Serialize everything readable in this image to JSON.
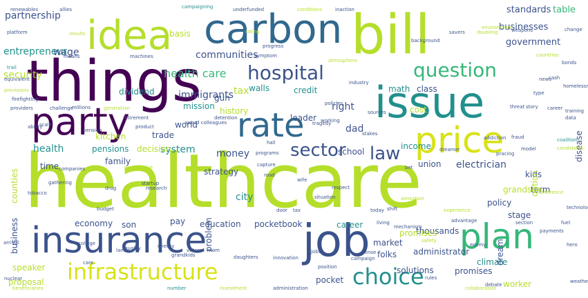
{
  "palette": {
    "purple": "#440154",
    "indigo": "#3b528b",
    "blue": "#31688e",
    "teal": "#21908d",
    "green": "#35b779",
    "lightgreen": "#5ec962",
    "lime": "#b5de2b",
    "yellow": "#d8e219",
    "dark": "#472c7a"
  },
  "words": [
    {
      "text": "healthcare",
      "color": "lime"
    },
    {
      "text": "things",
      "color": "purple"
    },
    {
      "text": "bill",
      "color": "lime"
    },
    {
      "text": "idea",
      "color": "lime"
    },
    {
      "text": "carbon",
      "color": "blue"
    },
    {
      "text": "issue",
      "color": "teal"
    },
    {
      "text": "party",
      "color": "purple"
    },
    {
      "text": "rate",
      "color": "blue"
    },
    {
      "text": "price",
      "color": "yellow"
    },
    {
      "text": "insurance",
      "color": "indigo"
    },
    {
      "text": "job",
      "color": "indigo"
    },
    {
      "text": "plan",
      "color": "green"
    },
    {
      "text": "infrastructure",
      "color": "yellow"
    },
    {
      "text": "choice",
      "color": "teal"
    },
    {
      "text": "hospital",
      "color": "indigo"
    },
    {
      "text": "question",
      "color": "green"
    },
    {
      "text": "sector",
      "color": "indigo"
    },
    {
      "text": "law",
      "color": "indigo"
    },
    {
      "text": "government",
      "color": "indigo"
    },
    {
      "text": "standards",
      "color": "indigo"
    },
    {
      "text": "businesses",
      "color": "indigo"
    },
    {
      "text": "table",
      "color": "green"
    },
    {
      "text": "partnership",
      "color": "indigo"
    },
    {
      "text": "entrepreneur",
      "color": "teal"
    },
    {
      "text": "wage",
      "color": "indigo"
    },
    {
      "text": "communities",
      "color": "indigo"
    },
    {
      "text": "health care",
      "color": "green"
    },
    {
      "text": "security",
      "color": "lime"
    },
    {
      "text": "dividend",
      "color": "teal"
    },
    {
      "text": "credit",
      "color": "teal"
    },
    {
      "text": "gun",
      "color": "indigo"
    },
    {
      "text": "walls",
      "color": "teal"
    },
    {
      "text": "math",
      "color": "teal"
    },
    {
      "text": "class",
      "color": "indigo"
    },
    {
      "text": "tax",
      "color": "lime"
    },
    {
      "text": "immigrants",
      "color": "indigo"
    },
    {
      "text": "mission",
      "color": "teal"
    },
    {
      "text": "right",
      "color": "indigo"
    },
    {
      "text": "leader",
      "color": "indigo"
    },
    {
      "text": "history",
      "color": "lime"
    },
    {
      "text": "world",
      "color": "indigo"
    },
    {
      "text": "trade",
      "color": "indigo"
    },
    {
      "text": "system",
      "color": "teal"
    },
    {
      "text": "dad",
      "color": "indigo"
    },
    {
      "text": "cost",
      "color": "lime"
    },
    {
      "text": "income",
      "color": "teal"
    },
    {
      "text": "kitchen",
      "color": "lime"
    },
    {
      "text": "pensions",
      "color": "teal"
    },
    {
      "text": "decision",
      "color": "lime"
    },
    {
      "text": "health",
      "color": "teal"
    },
    {
      "text": "money",
      "color": "indigo"
    },
    {
      "text": "strategy",
      "color": "indigo"
    },
    {
      "text": "school",
      "color": "indigo"
    },
    {
      "text": "family",
      "color": "indigo"
    },
    {
      "text": "time",
      "color": "indigo"
    },
    {
      "text": "union",
      "color": "indigo"
    },
    {
      "text": "electrician",
      "color": "indigo"
    },
    {
      "text": "kids",
      "color": "indigo"
    },
    {
      "text": "term",
      "color": "indigo"
    },
    {
      "text": "grandson",
      "color": "lime"
    },
    {
      "text": "policy",
      "color": "indigo"
    },
    {
      "text": "stage",
      "color": "indigo"
    },
    {
      "text": "city",
      "color": "teal"
    },
    {
      "text": "economy",
      "color": "indigo"
    },
    {
      "text": "pay",
      "color": "indigo"
    },
    {
      "text": "son",
      "color": "indigo"
    },
    {
      "text": "education",
      "color": "indigo"
    },
    {
      "text": "pocketbook",
      "color": "indigo"
    },
    {
      "text": "career",
      "color": "teal"
    },
    {
      "text": "thousands",
      "color": "indigo"
    },
    {
      "text": "promises",
      "color": "lime"
    },
    {
      "text": "market",
      "color": "indigo"
    },
    {
      "text": "folks",
      "color": "indigo"
    },
    {
      "text": "administrator",
      "color": "indigo"
    },
    {
      "text": "solutions",
      "color": "indigo"
    },
    {
      "text": "promises",
      "color": "indigo"
    },
    {
      "text": "climate",
      "color": "teal"
    },
    {
      "text": "worker",
      "color": "lime"
    },
    {
      "text": "speaker",
      "color": "lime"
    },
    {
      "text": "proposal",
      "color": "lime"
    },
    {
      "text": "pocket",
      "color": "indigo"
    },
    {
      "text": "basis",
      "color": "lime"
    },
    {
      "text": "counties",
      "color": "lime"
    },
    {
      "text": "business",
      "color": "indigo"
    },
    {
      "text": "problem",
      "color": "indigo"
    },
    {
      "text": "option",
      "color": "lime"
    },
    {
      "text": "disease",
      "color": "indigo"
    },
    {
      "text": "dream",
      "color": "indigo"
    },
    {
      "text": "allies",
      "color": "indigo"
    },
    {
      "text": "campaigning",
      "color": "teal"
    },
    {
      "text": "underfunded",
      "color": "indigo"
    },
    {
      "text": "conditions",
      "color": "lime"
    },
    {
      "text": "inaction",
      "color": "indigo"
    },
    {
      "text": "renewables",
      "color": "indigo"
    },
    {
      "text": "platform",
      "color": "indigo"
    },
    {
      "text": "results",
      "color": "lime"
    },
    {
      "text": "rating",
      "color": "lime"
    },
    {
      "text": "means",
      "color": "indigo"
    },
    {
      "text": "machines",
      "color": "indigo"
    },
    {
      "text": "symptom",
      "color": "indigo"
    },
    {
      "text": "progress",
      "color": "indigo"
    },
    {
      "text": "trail",
      "color": "teal"
    },
    {
      "text": "equivalent",
      "color": "indigo"
    },
    {
      "text": "provisions",
      "color": "lime"
    },
    {
      "text": "firefighting",
      "color": "indigo"
    },
    {
      "text": "providers",
      "color": "indigo"
    },
    {
      "text": "challenge",
      "color": "indigo"
    },
    {
      "text": "millions",
      "color": "indigo"
    },
    {
      "text": "generation",
      "color": "lime"
    },
    {
      "text": "industry",
      "color": "indigo"
    },
    {
      "text": "atmosphere",
      "color": "lime"
    },
    {
      "text": "background",
      "color": "indigo"
    },
    {
      "text": "savers",
      "color": "indigo"
    },
    {
      "text": "doubling",
      "color": "lime"
    },
    {
      "text": "environment",
      "color": "lime"
    },
    {
      "text": "weapons",
      "color": "indigo"
    },
    {
      "text": "countries",
      "color": "lime"
    },
    {
      "text": "change",
      "color": "indigo"
    },
    {
      "text": "training",
      "color": "indigo"
    },
    {
      "text": "data",
      "color": "indigo"
    },
    {
      "text": "coalition",
      "color": "teal"
    },
    {
      "text": "candidates",
      "color": "lime"
    },
    {
      "text": "companies",
      "color": "indigo"
    },
    {
      "text": "perspective",
      "color": "lime"
    },
    {
      "text": "startup",
      "color": "indigo"
    },
    {
      "text": "programs",
      "color": "indigo"
    },
    {
      "text": "capture",
      "color": "indigo"
    },
    {
      "text": "road",
      "color": "indigo"
    },
    {
      "text": "bet",
      "color": "indigo"
    },
    {
      "text": "pracing",
      "color": "indigo"
    },
    {
      "text": "difference",
      "color": "lime"
    },
    {
      "text": "budget",
      "color": "indigo"
    },
    {
      "text": "research",
      "color": "indigo"
    },
    {
      "text": "respect",
      "color": "indigo"
    },
    {
      "text": "situation",
      "color": "indigo"
    },
    {
      "text": "experience",
      "color": "lime"
    },
    {
      "text": "advantage",
      "color": "indigo"
    },
    {
      "text": "living",
      "color": "indigo"
    },
    {
      "text": "mechanism",
      "color": "indigo"
    },
    {
      "text": "section",
      "color": "indigo"
    },
    {
      "text": "payments",
      "color": "indigo"
    },
    {
      "text": "safety",
      "color": "lime"
    },
    {
      "text": "arrival",
      "color": "indigo"
    },
    {
      "text": "college",
      "color": "indigo"
    },
    {
      "text": "quality",
      "color": "indigo"
    },
    {
      "text": "energy",
      "color": "indigo"
    },
    {
      "text": "grandkids",
      "color": "indigo"
    },
    {
      "text": "daughters",
      "color": "indigo"
    },
    {
      "text": "innovation",
      "color": "indigo"
    },
    {
      "text": "position",
      "color": "indigo"
    },
    {
      "text": "campaign",
      "color": "indigo"
    },
    {
      "text": "beneficiaries",
      "color": "lime"
    },
    {
      "text": "number",
      "color": "teal"
    },
    {
      "text": "investment",
      "color": "lime"
    },
    {
      "text": "administration",
      "color": "indigo"
    },
    {
      "text": "collaboration",
      "color": "lime"
    },
    {
      "text": "rules",
      "color": "indigo"
    },
    {
      "text": "debate",
      "color": "indigo"
    },
    {
      "text": "nuclear",
      "color": "indigo"
    },
    {
      "text": "sensation",
      "color": "lime"
    },
    {
      "text": "dreamer",
      "color": "indigo"
    },
    {
      "text": "stakes",
      "color": "indigo"
    },
    {
      "text": "product",
      "color": "indigo"
    },
    {
      "text": "detention",
      "color": "indigo"
    },
    {
      "text": "award colleagues",
      "color": "indigo"
    },
    {
      "text": "tragedy",
      "color": "indigo"
    },
    {
      "text": "working",
      "color": "indigo"
    },
    {
      "text": "policies",
      "color": "indigo"
    },
    {
      "text": "sources",
      "color": "indigo"
    },
    {
      "text": "threat",
      "color": "indigo"
    },
    {
      "text": "story",
      "color": "indigo"
    },
    {
      "text": "career",
      "color": "indigo"
    },
    {
      "text": "news",
      "color": "indigo"
    },
    {
      "text": "bonds",
      "color": "indigo"
    },
    {
      "text": "cash",
      "color": "indigo"
    },
    {
      "text": "type",
      "color": "indigo"
    },
    {
      "text": "homelessness",
      "color": "indigo"
    },
    {
      "text": "technology",
      "color": "indigo"
    },
    {
      "text": "fuel",
      "color": "indigo"
    },
    {
      "text": "tobacco",
      "color": "indigo"
    },
    {
      "text": "gathering",
      "color": "indigo"
    },
    {
      "text": "pension",
      "color": "indigo"
    },
    {
      "text": "retirement",
      "color": "indigo"
    },
    {
      "text": "scale",
      "color": "indigo"
    },
    {
      "text": "ability",
      "color": "indigo"
    },
    {
      "text": "addiction",
      "color": "indigo"
    },
    {
      "text": "fraud",
      "color": "indigo"
    },
    {
      "text": "model",
      "color": "indigo"
    },
    {
      "text": "ecomy",
      "color": "indigo"
    },
    {
      "text": "hero",
      "color": "indigo"
    },
    {
      "text": "weather",
      "color": "indigo"
    },
    {
      "text": "shift",
      "color": "indigo"
    },
    {
      "text": "today",
      "color": "indigo"
    },
    {
      "text": "sense",
      "color": "indigo"
    },
    {
      "text": "tax",
      "color": "indigo"
    },
    {
      "text": "door",
      "color": "indigo"
    },
    {
      "text": "hall",
      "color": "indigo"
    },
    {
      "text": "wife",
      "color": "indigo"
    },
    {
      "text": "drug",
      "color": "indigo"
    },
    {
      "text": "voters",
      "color": "indigo"
    },
    {
      "text": "mom",
      "color": "indigo"
    },
    {
      "text": "land",
      "color": "indigo"
    },
    {
      "text": "care",
      "color": "indigo"
    },
    {
      "text": "jobs",
      "color": "indigo"
    },
    {
      "text": "taxes",
      "color": "indigo"
    },
    {
      "text": "plans",
      "color": "indigo"
    },
    {
      "text": "dollars",
      "color": "indigo"
    },
    {
      "text": "attention",
      "color": "indigo"
    },
    {
      "text": "amount",
      "color": "indigo"
    },
    {
      "text": "capitol",
      "color": "indigo"
    },
    {
      "text": "service",
      "color": "indigo"
    },
    {
      "text": "support",
      "color": "indigo"
    },
    {
      "text": "decade",
      "color": "indigo"
    },
    {
      "text": "lobbyist",
      "color": "indigo"
    },
    {
      "text": "workforce",
      "color": "indigo"
    }
  ]
}
